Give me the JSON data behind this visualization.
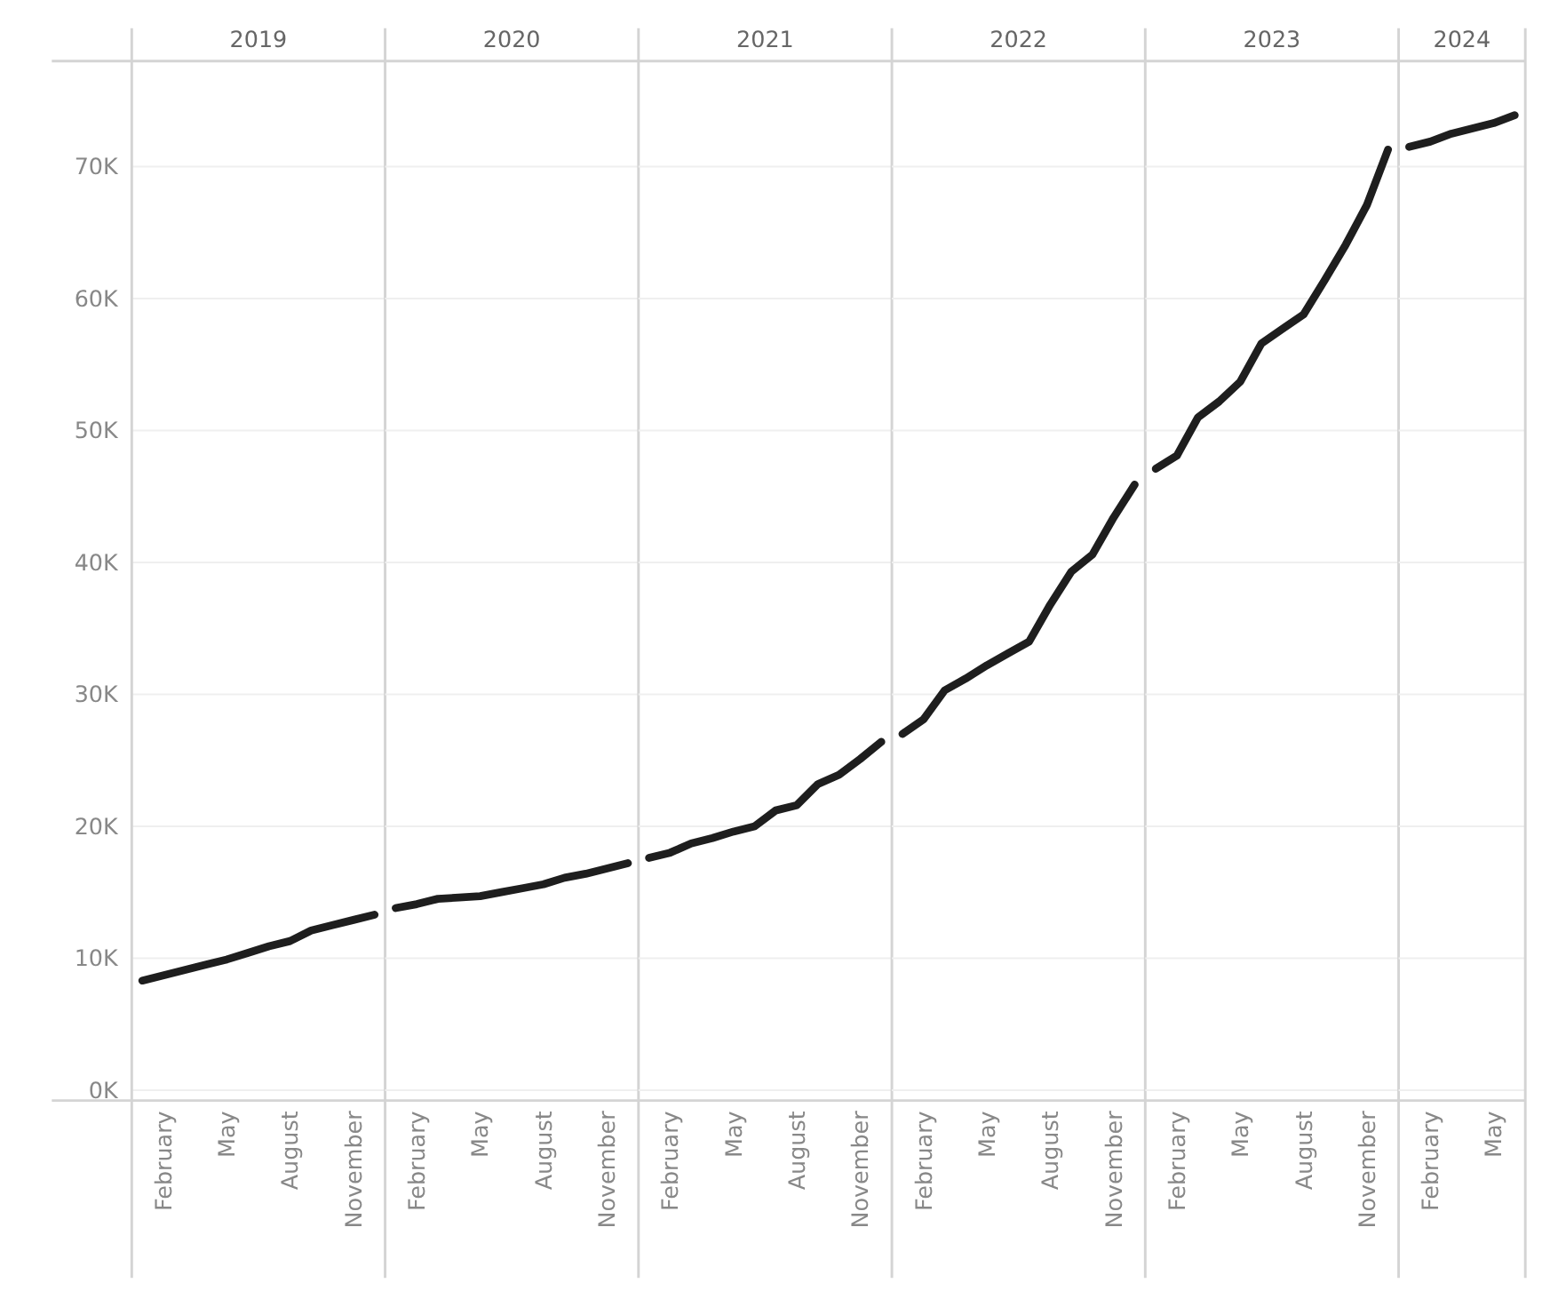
{
  "chart_data": [
    {
      "type": "line",
      "title": "2019",
      "categories": [
        null,
        "February",
        null,
        null,
        "May",
        null,
        null,
        "August",
        null,
        null,
        "November",
        null
      ],
      "values": [
        8300,
        8700,
        9100,
        9500,
        9900,
        10400,
        10900,
        11300,
        12100,
        12500,
        12900,
        13300
      ],
      "color": "#1e1e1e",
      "ylim": [
        0,
        78000
      ],
      "yticks": [
        {
          "value": 0,
          "label": "0K"
        },
        {
          "value": 10000,
          "label": "10K"
        },
        {
          "value": 20000,
          "label": "20K"
        },
        {
          "value": 30000,
          "label": "30K"
        },
        {
          "value": 40000,
          "label": "40K"
        },
        {
          "value": 50000,
          "label": "50K"
        },
        {
          "value": 60000,
          "label": "60K"
        },
        {
          "value": 70000,
          "label": "70K"
        }
      ],
      "grid": "y"
    },
    {
      "type": "line",
      "title": "2020",
      "categories": [
        null,
        "February",
        null,
        null,
        "May",
        null,
        null,
        "August",
        null,
        null,
        "November",
        null
      ],
      "values": [
        13800,
        14100,
        14500,
        14600,
        14700,
        15000,
        15300,
        15600,
        16100,
        16400,
        16800,
        17200
      ],
      "color": "#1e1e1e",
      "ylim": [
        0,
        78000
      ],
      "grid": "y",
      "tick_labels": "x"
    },
    {
      "type": "line",
      "title": "2021",
      "categories": [
        null,
        "February",
        null,
        null,
        "May",
        null,
        null,
        "August",
        null,
        null,
        "November",
        null
      ],
      "values": [
        17600,
        18000,
        18700,
        19100,
        19600,
        20000,
        21200,
        21600,
        23200,
        23900,
        25100,
        26400
      ],
      "color": "#1e1e1e",
      "ylim": [
        0,
        78000
      ],
      "grid": "y",
      "tick_labels": "x"
    },
    {
      "type": "line",
      "title": "2022",
      "categories": [
        null,
        "February",
        null,
        null,
        "May",
        null,
        null,
        "August",
        null,
        null,
        "November",
        null
      ],
      "values": [
        27000,
        28100,
        30300,
        31200,
        32200,
        33100,
        34000,
        36800,
        39300,
        40600,
        43400,
        45900
      ],
      "color": "#1e1e1e",
      "ylim": [
        0,
        78000
      ],
      "grid": "y",
      "tick_labels": "x"
    },
    {
      "type": "line",
      "title": "2023",
      "categories": [
        null,
        "February",
        null,
        null,
        "May",
        null,
        null,
        "August",
        null,
        null,
        "November",
        null
      ],
      "values": [
        47100,
        48100,
        51000,
        52200,
        53700,
        56600,
        57700,
        58800,
        61400,
        64100,
        67100,
        71300
      ],
      "color": "#1e1e1e",
      "ylim": [
        0,
        78000
      ],
      "grid": "y",
      "tick_labels": "x"
    },
    {
      "type": "line",
      "title": "2024",
      "categories": [
        null,
        "February",
        null,
        null,
        "May",
        null
      ],
      "values": [
        71500,
        71900,
        72500,
        72900,
        73300,
        73900
      ],
      "color": "#1e1e1e",
      "ylim": [
        0,
        78000
      ],
      "grid": "y",
      "tick_labels": "x"
    }
  ]
}
